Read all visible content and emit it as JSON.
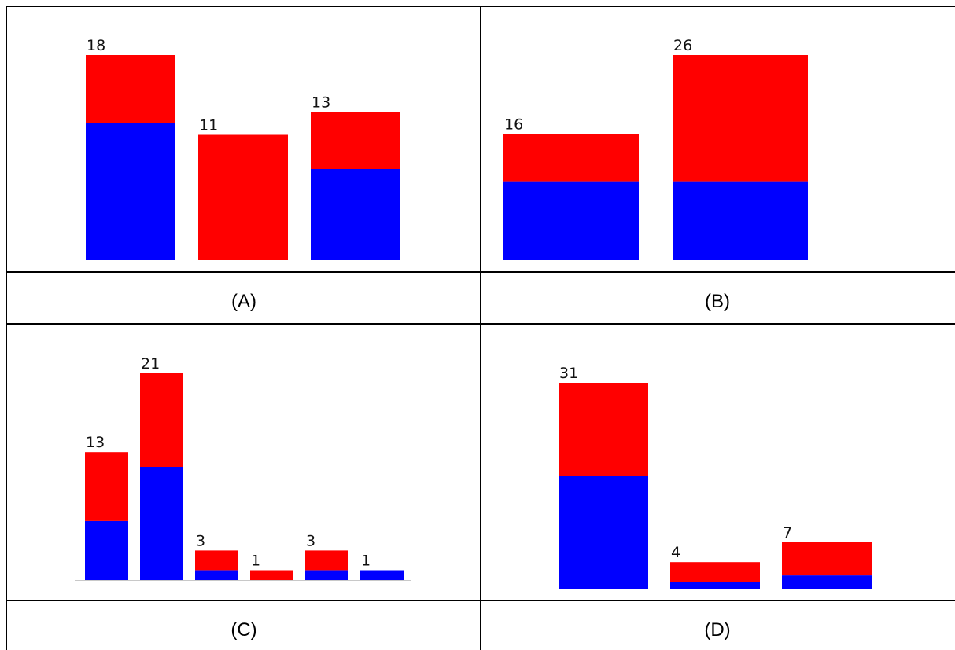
{
  "colors": {
    "segment_blue": "#0000ff",
    "segment_red": "#ff0000"
  },
  "chart_data": [
    {
      "type": "bar",
      "stacked": true,
      "caption": "(A)",
      "totals": [
        18,
        11,
        13
      ],
      "series": [
        {
          "color": "blue",
          "values": [
            12,
            0,
            8
          ]
        },
        {
          "color": "red",
          "values": [
            6,
            11,
            5
          ]
        }
      ],
      "ylim": [
        0,
        18
      ]
    },
    {
      "type": "bar",
      "stacked": true,
      "caption": "(B)",
      "totals": [
        16,
        26
      ],
      "series": [
        {
          "color": "blue",
          "values": [
            10,
            10
          ]
        },
        {
          "color": "red",
          "values": [
            6,
            16
          ]
        }
      ],
      "ylim": [
        0,
        26
      ]
    },
    {
      "type": "bar",
      "stacked": true,
      "caption": "(C)",
      "totals": [
        13,
        21,
        3,
        1,
        3,
        1
      ],
      "series": [
        {
          "color": "blue",
          "values": [
            6,
            11.5,
            1,
            0,
            1,
            1
          ]
        },
        {
          "color": "red",
          "values": [
            7,
            9.5,
            2,
            1,
            2,
            0
          ]
        }
      ],
      "ylim": [
        0,
        21
      ]
    },
    {
      "type": "bar",
      "stacked": true,
      "caption": "(D)",
      "totals": [
        31,
        4,
        7
      ],
      "series": [
        {
          "color": "blue",
          "values": [
            17,
            1,
            2
          ]
        },
        {
          "color": "red",
          "values": [
            14,
            3,
            5
          ]
        }
      ],
      "ylim": [
        0,
        31
      ]
    }
  ]
}
